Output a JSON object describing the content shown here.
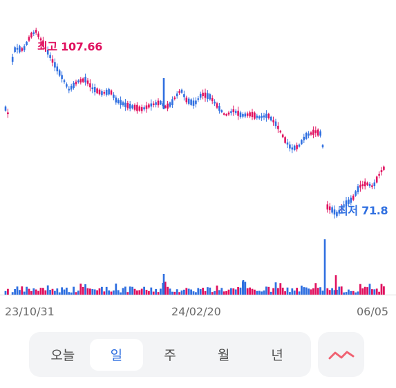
{
  "chart_data": {
    "type": "candlestick",
    "high_label": "최고 107.66",
    "low_label": "최저 71.8",
    "x_tick_labels": [
      "23/10/31",
      "24/02/20",
      "06/05"
    ],
    "colors": {
      "up": "#e0115f",
      "down": "#2f6fe0"
    }
  },
  "periods": [
    "오늘",
    "일",
    "주",
    "월",
    "년"
  ],
  "active_period": "일",
  "chart_type_icon": "line-chart-icon",
  "accent_color": "#2f6fe0"
}
